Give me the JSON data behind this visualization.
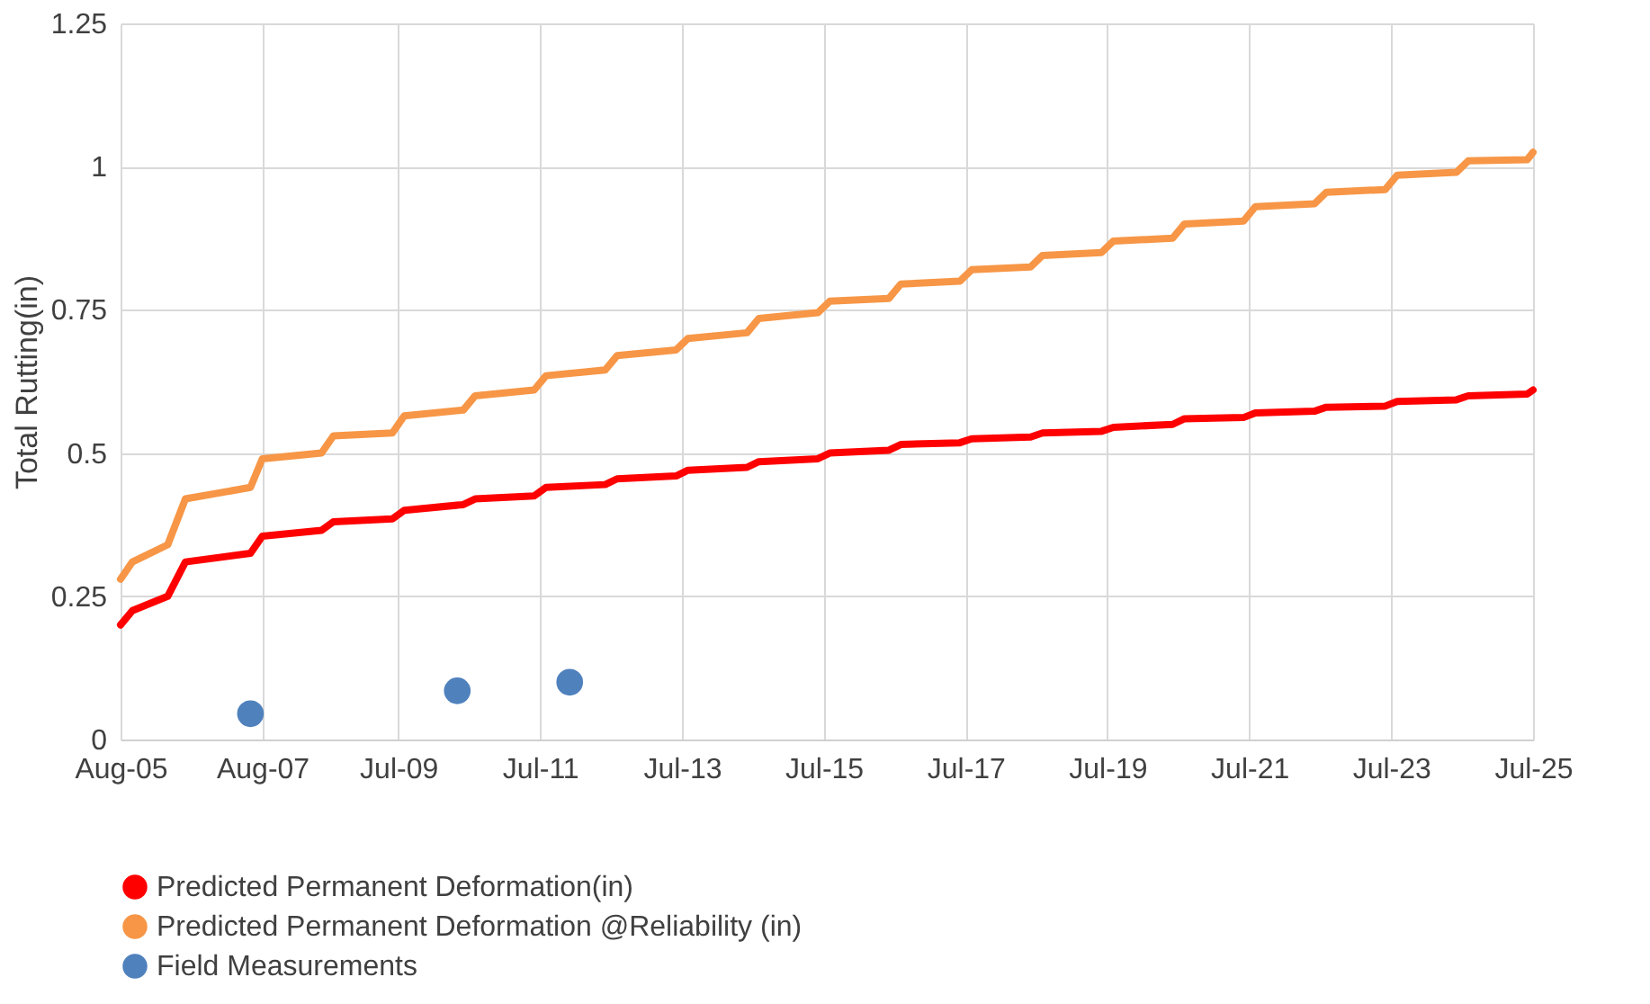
{
  "chart_data": {
    "type": "line",
    "ylabel": "Total Rutting(in)",
    "xlim": [
      "2005-08",
      "2025-07"
    ],
    "ylim": [
      0,
      1.25
    ],
    "yticks": [
      0,
      0.25,
      0.5,
      0.75,
      1,
      1.25
    ],
    "xticks": [
      {
        "value": "2005-08",
        "label": "Aug-05"
      },
      {
        "value": "2007-08",
        "label": "Aug-07"
      },
      {
        "value": "2009-07",
        "label": "Jul-09"
      },
      {
        "value": "2011-07",
        "label": "Jul-11"
      },
      {
        "value": "2013-07",
        "label": "Jul-13"
      },
      {
        "value": "2015-07",
        "label": "Jul-15"
      },
      {
        "value": "2017-07",
        "label": "Jul-17"
      },
      {
        "value": "2019-07",
        "label": "Jul-19"
      },
      {
        "value": "2021-07",
        "label": "Jul-21"
      },
      {
        "value": "2023-07",
        "label": "Jul-23"
      },
      {
        "value": "2025-07",
        "label": "Jul-25"
      }
    ],
    "grid": true,
    "legend": "bottom",
    "line_style": "solid",
    "series": [
      {
        "name": "Predicted Permanent Deformation(in)",
        "color": "#ff0000",
        "x": [
          "2005-08",
          "2005-10",
          "2006-04",
          "2006-07",
          "2007-06",
          "2007-08",
          "2008-06",
          "2008-08",
          "2009-06",
          "2009-08",
          "2010-06",
          "2010-08",
          "2011-06",
          "2011-08",
          "2012-06",
          "2012-08",
          "2013-06",
          "2013-08",
          "2014-06",
          "2014-08",
          "2015-06",
          "2015-08",
          "2016-06",
          "2016-08",
          "2017-06",
          "2017-08",
          "2018-06",
          "2018-08",
          "2019-06",
          "2019-08",
          "2020-06",
          "2020-08",
          "2021-06",
          "2021-08",
          "2022-06",
          "2022-08",
          "2023-06",
          "2023-08",
          "2024-06",
          "2024-08",
          "2025-06",
          "2025-07"
        ],
        "values": [
          0.2,
          0.225,
          0.25,
          0.31,
          0.325,
          0.355,
          0.365,
          0.38,
          0.385,
          0.4,
          0.41,
          0.42,
          0.425,
          0.44,
          0.445,
          0.455,
          0.46,
          0.47,
          0.475,
          0.485,
          0.49,
          0.5,
          0.505,
          0.515,
          0.518,
          0.525,
          0.528,
          0.535,
          0.538,
          0.545,
          0.55,
          0.56,
          0.562,
          0.57,
          0.573,
          0.58,
          0.582,
          0.59,
          0.593,
          0.6,
          0.603,
          0.61
        ]
      },
      {
        "name": "Predicted Permanent Deformation @Reliability (in)",
        "color": "#f79646",
        "x": [
          "2005-08",
          "2005-10",
          "2006-04",
          "2006-07",
          "2007-06",
          "2007-08",
          "2008-06",
          "2008-08",
          "2009-06",
          "2009-08",
          "2010-06",
          "2010-08",
          "2011-06",
          "2011-08",
          "2012-06",
          "2012-08",
          "2013-06",
          "2013-08",
          "2014-06",
          "2014-08",
          "2015-06",
          "2015-08",
          "2016-06",
          "2016-08",
          "2017-06",
          "2017-08",
          "2018-06",
          "2018-08",
          "2019-06",
          "2019-08",
          "2020-06",
          "2020-08",
          "2021-06",
          "2021-08",
          "2022-06",
          "2022-08",
          "2023-06",
          "2023-08",
          "2024-06",
          "2024-08",
          "2025-06",
          "2025-07"
        ],
        "values": [
          0.28,
          0.31,
          0.34,
          0.42,
          0.44,
          0.49,
          0.5,
          0.53,
          0.535,
          0.565,
          0.575,
          0.6,
          0.61,
          0.635,
          0.645,
          0.67,
          0.68,
          0.7,
          0.71,
          0.735,
          0.745,
          0.765,
          0.77,
          0.795,
          0.8,
          0.82,
          0.825,
          0.845,
          0.85,
          0.87,
          0.875,
          0.9,
          0.905,
          0.93,
          0.935,
          0.955,
          0.96,
          0.985,
          0.99,
          1.01,
          1.012,
          1.025
        ]
      },
      {
        "name": "Field Measurements",
        "color": "#4f81bd",
        "type": "scatter",
        "marker": "circle",
        "x": [
          "2007-06",
          "2010-05",
          "2011-12"
        ],
        "values": [
          0.045,
          0.085,
          0.1
        ]
      }
    ]
  }
}
